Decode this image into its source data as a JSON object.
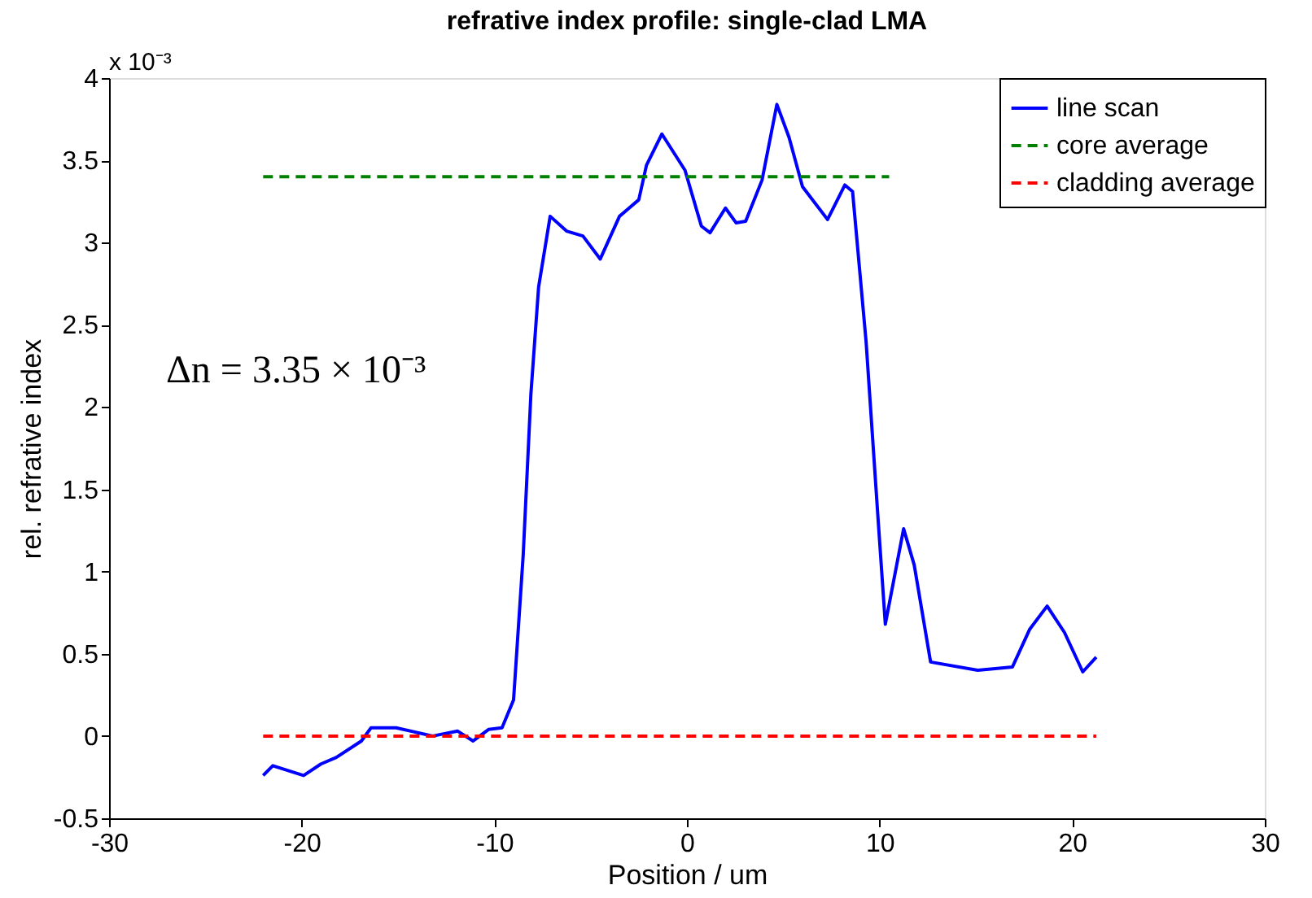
{
  "chart_data": {
    "type": "line",
    "title": "refrative index profile: single-clad LMA",
    "xlabel": "Position / um",
    "ylabel": "rel. refrative index",
    "annotations": [
      "Δn = 3.35 × 10⁻³",
      "x 10⁻³"
    ],
    "xlim": [
      -30,
      30
    ],
    "xticks": [
      -30,
      -20,
      -10,
      0,
      10,
      20,
      30
    ],
    "ylim": [
      -0.5,
      4
    ],
    "yticks": [
      -0.5,
      0,
      0.5,
      1,
      1.5,
      2,
      2.5,
      3,
      3.5,
      4
    ],
    "grid": false,
    "legend": "top right",
    "marker": "none",
    "series": [
      {
        "name": "line scan",
        "color": "#0000ff",
        "line_style": "solid",
        "x": [
          -22.0,
          -21.5,
          -19.9,
          -19.0,
          -18.2,
          -16.9,
          -16.4,
          -15.1,
          -13.2,
          -11.9,
          -11.1,
          -10.3,
          -9.6,
          -9.0,
          -8.5,
          -8.1,
          -7.7,
          -7.1,
          -6.25,
          -5.4,
          -4.5,
          -3.5,
          -2.5,
          -2.1,
          -1.3,
          -0.1,
          0.75,
          1.2,
          2.0,
          2.55,
          3.05,
          3.9,
          4.67,
          5.3,
          6.0,
          7.3,
          8.2,
          8.6,
          9.3,
          9.9,
          10.3,
          11.25,
          11.8,
          12.65,
          15.1,
          16.9,
          17.8,
          18.7,
          19.6,
          20.55,
          21.25
        ],
        "values": [
          -0.24,
          -0.18,
          -0.24,
          -0.17,
          -0.13,
          -0.03,
          0.05,
          0.05,
          0.0,
          0.03,
          -0.03,
          0.04,
          0.05,
          0.22,
          1.1,
          2.08,
          2.73,
          3.16,
          3.07,
          3.04,
          2.9,
          3.16,
          3.26,
          3.47,
          3.66,
          3.44,
          3.1,
          3.06,
          3.21,
          3.12,
          3.13,
          3.38,
          3.84,
          3.64,
          3.34,
          3.14,
          3.35,
          3.31,
          2.4,
          1.36,
          0.68,
          1.26,
          1.04,
          0.45,
          0.4,
          0.42,
          0.65,
          0.79,
          0.63,
          0.39,
          0.48
        ]
      },
      {
        "name": "core average",
        "color": "#008000",
        "line_style": "dashed",
        "x": [
          -22.0,
          10.5
        ],
        "values": [
          3.4,
          3.4
        ]
      },
      {
        "name": "cladding average",
        "color": "#ff0000",
        "line_style": "dashed",
        "x": [
          -22.0,
          21.25
        ],
        "values": [
          0,
          0
        ]
      }
    ]
  }
}
